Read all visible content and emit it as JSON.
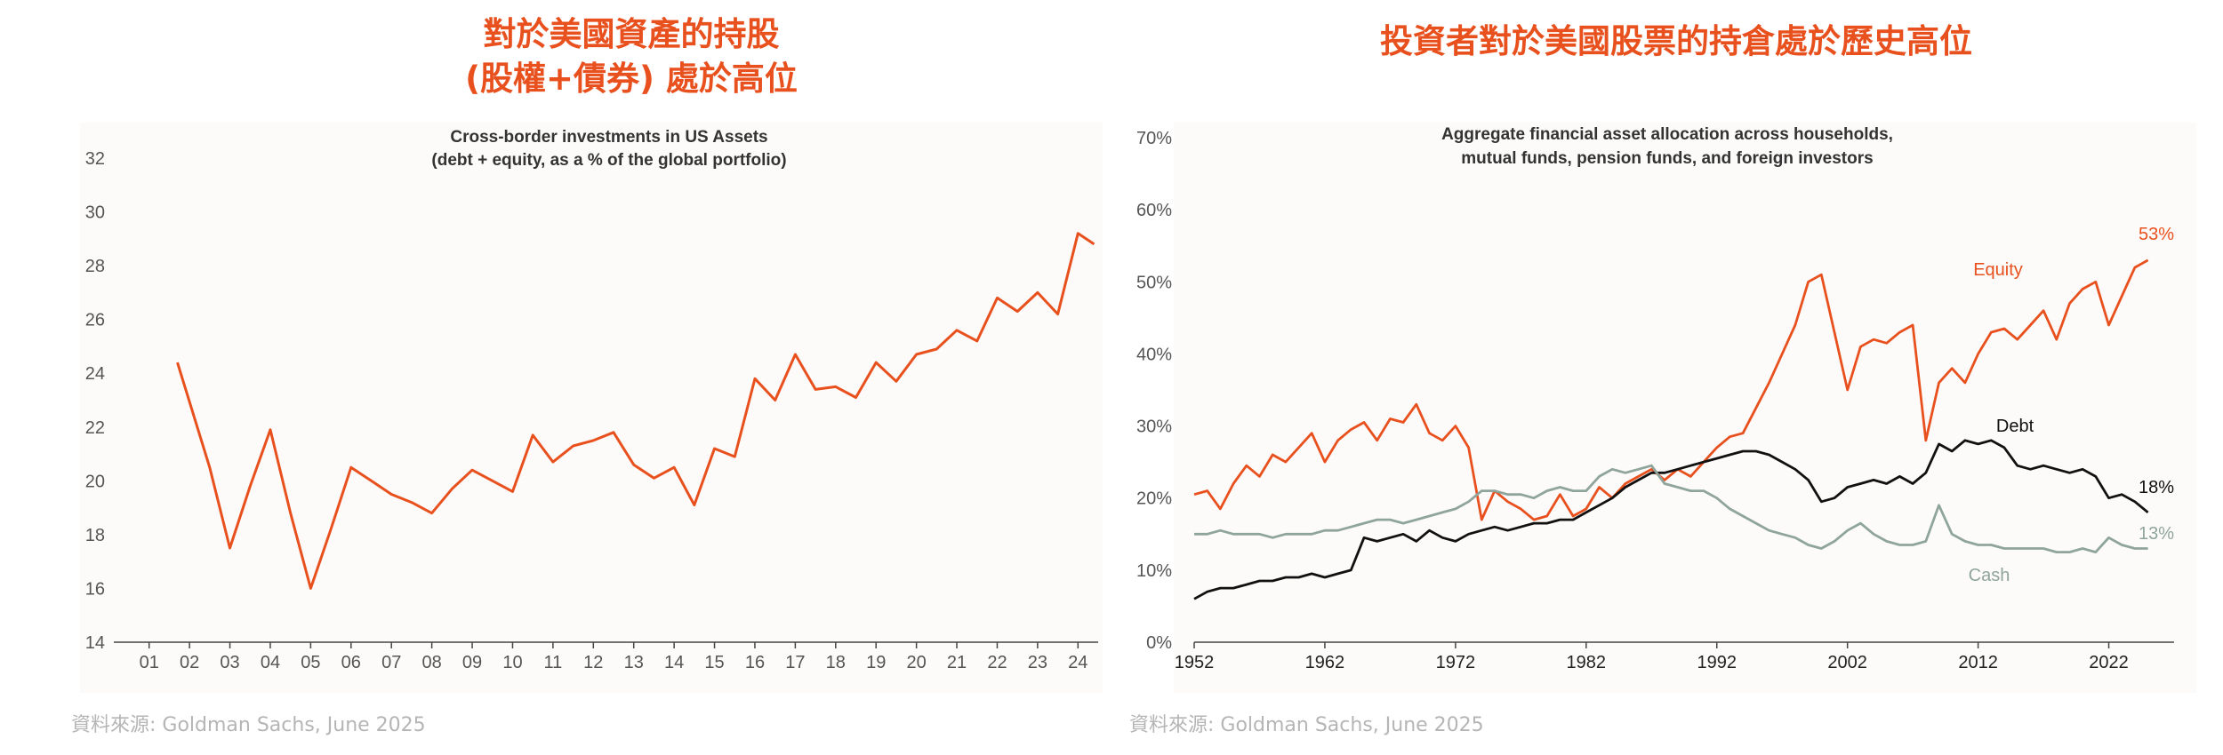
{
  "left": {
    "heading_line1": "對於美國資產的持股",
    "heading_line2": "(股權+債券) 處於高位",
    "source": "資料來源: Goldman Sachs, June 2025"
  },
  "right": {
    "heading": "投資者對於美國股票的持倉處於歷史高位",
    "source": "資料來源: Goldman Sachs, June 2025"
  },
  "colors": {
    "accent": "#e8501e",
    "debt": "#111111",
    "cash": "#8fa59c",
    "axis": "#555555"
  },
  "chart_data": [
    {
      "type": "line",
      "title": "Cross-border investments in US Assets",
      "subtitle": "(debt + equity, as a % of the global portfolio)",
      "xlabel": "",
      "ylabel": "",
      "ylim": [
        14,
        32
      ],
      "yticks": [
        14,
        16,
        18,
        20,
        22,
        24,
        26,
        28,
        30,
        32
      ],
      "xlim": [
        0.5,
        24.5
      ],
      "xticks": [
        1,
        2,
        3,
        4,
        5,
        6,
        7,
        8,
        9,
        10,
        11,
        12,
        13,
        14,
        15,
        16,
        17,
        18,
        19,
        20,
        21,
        22,
        23,
        24
      ],
      "xtick_labels": [
        "01",
        "02",
        "03",
        "04",
        "05",
        "06",
        "07",
        "08",
        "09",
        "10",
        "11",
        "12",
        "13",
        "14",
        "15",
        "16",
        "17",
        "18",
        "19",
        "20",
        "21",
        "22",
        "23",
        "24"
      ],
      "grid": false,
      "series": [
        {
          "name": "Cross-border investments in US Assets",
          "x": [
            1.7,
            2.5,
            3.0,
            3.5,
            4.0,
            4.5,
            5.0,
            5.5,
            6.0,
            6.5,
            7.0,
            7.5,
            8.0,
            8.5,
            9.0,
            9.5,
            10.0,
            10.5,
            11.0,
            11.5,
            12.0,
            12.5,
            13.0,
            13.5,
            14.0,
            14.5,
            15.0,
            15.5,
            16.0,
            16.5,
            17.0,
            17.5,
            18.0,
            18.5,
            19.0,
            19.5,
            20.0,
            20.5,
            21.0,
            21.5,
            22.0,
            22.5,
            23.0,
            23.5,
            24.0,
            24.4
          ],
          "values": [
            24.4,
            20.5,
            17.5,
            19.8,
            21.9,
            18.8,
            16.0,
            18.2,
            20.5,
            20.0,
            19.5,
            19.2,
            18.8,
            19.7,
            20.4,
            20.0,
            19.6,
            21.7,
            20.7,
            21.3,
            21.5,
            21.8,
            20.6,
            20.1,
            20.5,
            19.1,
            21.2,
            20.9,
            23.8,
            23.0,
            24.7,
            23.4,
            23.5,
            23.1,
            24.4,
            23.7,
            24.7,
            24.9,
            25.6,
            25.2,
            26.8,
            26.3,
            27.0,
            26.2,
            29.2,
            28.8
          ]
        }
      ]
    },
    {
      "type": "line",
      "title": "Aggregate financial asset allocation across households,",
      "subtitle": "mutual funds, pension funds, and foreign investors",
      "xlabel": "",
      "ylabel": "",
      "ylim": [
        0,
        70
      ],
      "yticks": [
        0,
        10,
        20,
        30,
        40,
        50,
        60,
        70
      ],
      "ytick_labels": [
        "0%",
        "10%",
        "20%",
        "30%",
        "40%",
        "50%",
        "60%",
        "70%"
      ],
      "xlim": [
        1952,
        2027
      ],
      "xticks": [
        1952,
        1962,
        1972,
        1982,
        1992,
        2002,
        2012,
        2022
      ],
      "grid": false,
      "end_labels": [
        "53%",
        "18%",
        "13%"
      ],
      "series": [
        {
          "name": "Equity",
          "x": [
            1952,
            1953,
            1954,
            1955,
            1956,
            1957,
            1958,
            1959,
            1960,
            1961,
            1962,
            1963,
            1964,
            1965,
            1966,
            1967,
            1968,
            1969,
            1970,
            1971,
            1972,
            1973,
            1974,
            1975,
            1976,
            1977,
            1978,
            1979,
            1980,
            1981,
            1982,
            1983,
            1984,
            1985,
            1986,
            1987,
            1988,
            1989,
            1990,
            1991,
            1992,
            1993,
            1994,
            1995,
            1996,
            1997,
            1998,
            1999,
            2000,
            2001,
            2002,
            2003,
            2004,
            2005,
            2006,
            2007,
            2008,
            2009,
            2010,
            2011,
            2012,
            2013,
            2014,
            2015,
            2016,
            2017,
            2018,
            2019,
            2020,
            2021,
            2022,
            2023,
            2024,
            2025
          ],
          "values": [
            20.5,
            21,
            18.5,
            22,
            24.5,
            23,
            26,
            25,
            27,
            29,
            25,
            28,
            29.5,
            30.5,
            28,
            31,
            30.5,
            33,
            29,
            28,
            30,
            27,
            17,
            21,
            19.5,
            18.5,
            17,
            17.5,
            20.5,
            17.5,
            18.5,
            21.5,
            20,
            22,
            23,
            24,
            22.5,
            24,
            23,
            25,
            27,
            28.5,
            29,
            32.5,
            36,
            40,
            44,
            50,
            51,
            43,
            35,
            41,
            42,
            41.5,
            43,
            44,
            28,
            36,
            38,
            36,
            40,
            43,
            43.5,
            42,
            44,
            46,
            42,
            47,
            49,
            50,
            44,
            48,
            52,
            53
          ]
        },
        {
          "name": "Debt",
          "x": [
            1952,
            1953,
            1954,
            1955,
            1956,
            1957,
            1958,
            1959,
            1960,
            1961,
            1962,
            1963,
            1964,
            1965,
            1966,
            1967,
            1968,
            1969,
            1970,
            1971,
            1972,
            1973,
            1974,
            1975,
            1976,
            1977,
            1978,
            1979,
            1980,
            1981,
            1982,
            1983,
            1984,
            1985,
            1986,
            1987,
            1988,
            1989,
            1990,
            1991,
            1992,
            1993,
            1994,
            1995,
            1996,
            1997,
            1998,
            1999,
            2000,
            2001,
            2002,
            2003,
            2004,
            2005,
            2006,
            2007,
            2008,
            2009,
            2010,
            2011,
            2012,
            2013,
            2014,
            2015,
            2016,
            2017,
            2018,
            2019,
            2020,
            2021,
            2022,
            2023,
            2024,
            2025
          ],
          "values": [
            6,
            7,
            7.5,
            7.5,
            8,
            8.5,
            8.5,
            9,
            9,
            9.5,
            9,
            9.5,
            10,
            14.5,
            14,
            14.5,
            15,
            14,
            15.5,
            14.5,
            14,
            15,
            15.5,
            16,
            15.5,
            16,
            16.5,
            16.5,
            17,
            17,
            18,
            19,
            20,
            21.5,
            22.5,
            23.5,
            23.5,
            24,
            24.5,
            25,
            25.5,
            26,
            26.5,
            26.5,
            26,
            25,
            24,
            22.5,
            19.5,
            20,
            21.5,
            22,
            22.5,
            22,
            23,
            22,
            23.5,
            27.5,
            26.5,
            28,
            27.5,
            28,
            27,
            24.5,
            24,
            24.5,
            24,
            23.5,
            24,
            23,
            20,
            20.5,
            19.5,
            18
          ]
        },
        {
          "name": "Cash",
          "x": [
            1952,
            1953,
            1954,
            1955,
            1956,
            1957,
            1958,
            1959,
            1960,
            1961,
            1962,
            1963,
            1964,
            1965,
            1966,
            1967,
            1968,
            1969,
            1970,
            1971,
            1972,
            1973,
            1974,
            1975,
            1976,
            1977,
            1978,
            1979,
            1980,
            1981,
            1982,
            1983,
            1984,
            1985,
            1986,
            1987,
            1988,
            1989,
            1990,
            1991,
            1992,
            1993,
            1994,
            1995,
            1996,
            1997,
            1998,
            1999,
            2000,
            2001,
            2002,
            2003,
            2004,
            2005,
            2006,
            2007,
            2008,
            2009,
            2010,
            2011,
            2012,
            2013,
            2014,
            2015,
            2016,
            2017,
            2018,
            2019,
            2020,
            2021,
            2022,
            2023,
            2024,
            2025
          ],
          "values": [
            15,
            15,
            15.5,
            15,
            15,
            15,
            14.5,
            15,
            15,
            15,
            15.5,
            15.5,
            16,
            16.5,
            17,
            17,
            16.5,
            17,
            17.5,
            18,
            18.5,
            19.5,
            21,
            21,
            20.5,
            20.5,
            20,
            21,
            21.5,
            21,
            21,
            23,
            24,
            23.5,
            24,
            24.5,
            22,
            21.5,
            21,
            21,
            20,
            18.5,
            17.5,
            16.5,
            15.5,
            15,
            14.5,
            13.5,
            13,
            14,
            15.5,
            16.5,
            15,
            14,
            13.5,
            13.5,
            14,
            19,
            15,
            14,
            13.5,
            13.5,
            13,
            13,
            13,
            13,
            12.5,
            12.5,
            13,
            12.5,
            14.5,
            13.5,
            13,
            13
          ]
        }
      ]
    }
  ]
}
